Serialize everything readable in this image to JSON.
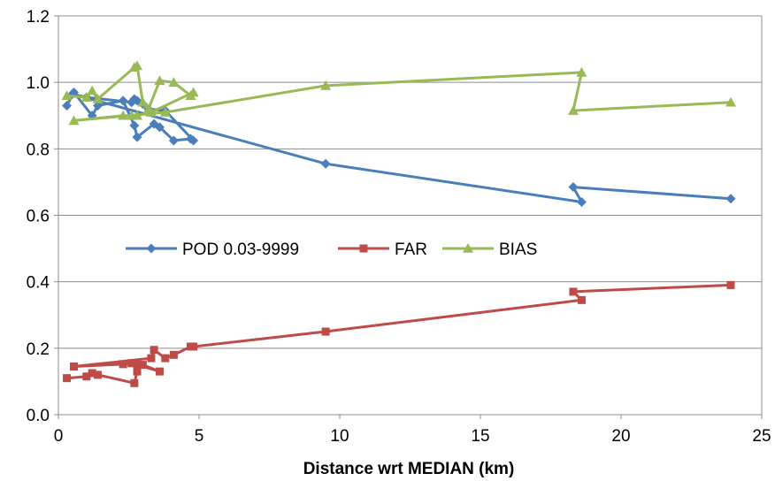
{
  "chart_data": {
    "type": "line",
    "title": "",
    "xlabel": "Distance wrt MEDIAN (km)",
    "ylabel": "",
    "xlim": [
      0,
      25
    ],
    "ylim": [
      0,
      1.2
    ],
    "x_ticks": [
      0,
      5,
      10,
      15,
      20,
      25
    ],
    "y_ticks": [
      0.0,
      0.2,
      0.4,
      0.6,
      0.8,
      1.0,
      1.2
    ],
    "x_tick_labels": [
      "0",
      "5",
      "10",
      "15",
      "20",
      "25"
    ],
    "y_tick_labels": [
      "0.0",
      "0.2",
      "0.4",
      "0.6",
      "0.8",
      "1.0",
      "1.2"
    ],
    "grid": "horizontal",
    "legend_position": "center-left",
    "series": [
      {
        "name": "POD 0.03-9999",
        "color": "#4a7ebb",
        "marker": "diamond",
        "points": [
          [
            0.3,
            0.93
          ],
          [
            0.55,
            0.97
          ],
          [
            1.2,
            0.9
          ],
          [
            1.4,
            0.93
          ],
          [
            2.3,
            0.945
          ],
          [
            2.7,
            0.87
          ],
          [
            2.8,
            0.835
          ],
          [
            3.4,
            0.875
          ],
          [
            3.6,
            0.865
          ],
          [
            4.1,
            0.825
          ],
          [
            4.7,
            0.83
          ],
          [
            4.8,
            0.825
          ],
          [
            3.8,
            0.915
          ],
          [
            3.2,
            0.92
          ],
          [
            3.0,
            0.935
          ],
          [
            2.8,
            0.945
          ],
          [
            2.7,
            0.95
          ],
          [
            2.6,
            0.94
          ],
          [
            1.0,
            0.955
          ],
          [
            0.5,
            0.965
          ],
          [
            9.5,
            0.755
          ],
          [
            18.6,
            0.64
          ],
          [
            18.3,
            0.685
          ],
          [
            23.9,
            0.65
          ]
        ]
      },
      {
        "name": "FAR",
        "color": "#be4b48",
        "marker": "square",
        "points": [
          [
            0.3,
            0.11
          ],
          [
            1.0,
            0.115
          ],
          [
            1.2,
            0.125
          ],
          [
            1.4,
            0.12
          ],
          [
            2.7,
            0.095
          ],
          [
            2.8,
            0.13
          ],
          [
            3.0,
            0.15
          ],
          [
            3.6,
            0.13
          ],
          [
            2.8,
            0.15
          ],
          [
            2.6,
            0.155
          ],
          [
            2.3,
            0.152
          ],
          [
            0.55,
            0.145
          ],
          [
            3.3,
            0.17
          ],
          [
            3.4,
            0.195
          ],
          [
            3.8,
            0.17
          ],
          [
            4.1,
            0.18
          ],
          [
            4.7,
            0.205
          ],
          [
            4.8,
            0.205
          ],
          [
            9.5,
            0.25
          ],
          [
            18.6,
            0.345
          ],
          [
            18.3,
            0.37
          ],
          [
            23.9,
            0.39
          ]
        ]
      },
      {
        "name": "BIAS",
        "color": "#98b954",
        "marker": "triangle",
        "points": [
          [
            0.3,
            0.96
          ],
          [
            1.0,
            0.955
          ],
          [
            1.2,
            0.975
          ],
          [
            1.4,
            0.95
          ],
          [
            2.7,
            1.045
          ],
          [
            2.8,
            1.05
          ],
          [
            3.0,
            0.94
          ],
          [
            3.2,
            0.92
          ],
          [
            3.6,
            1.005
          ],
          [
            4.1,
            1.0
          ],
          [
            4.7,
            0.96
          ],
          [
            4.8,
            0.97
          ],
          [
            3.3,
            0.91
          ],
          [
            2.8,
            0.9
          ],
          [
            2.6,
            0.9
          ],
          [
            2.3,
            0.9
          ],
          [
            0.55,
            0.885
          ],
          [
            3.8,
            0.91
          ],
          [
            9.5,
            0.99
          ],
          [
            18.6,
            1.03
          ],
          [
            18.3,
            0.915
          ],
          [
            23.9,
            0.94
          ]
        ]
      }
    ]
  }
}
